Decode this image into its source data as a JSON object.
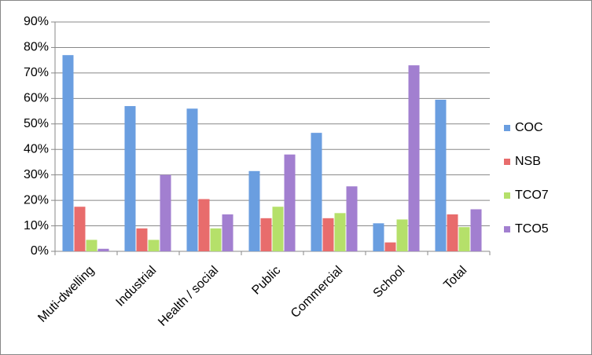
{
  "chart_data": {
    "type": "bar",
    "categories": [
      "Muti-dwelling",
      "Industrial",
      "Health / social",
      "Public",
      "Commercial",
      "School",
      "Total"
    ],
    "series": [
      {
        "name": "COC",
        "color": "#6a9ee0",
        "values": [
          77,
          57,
          56,
          31.5,
          46.5,
          11,
          59.5
        ]
      },
      {
        "name": "NSB",
        "color": "#e86c6c",
        "values": [
          17.5,
          9,
          20.5,
          13,
          13,
          3.5,
          14.5
        ]
      },
      {
        "name": "TCO7",
        "color": "#b5e06a",
        "values": [
          4.5,
          4.5,
          9,
          17.5,
          15,
          12.5,
          9.5
        ]
      },
      {
        "name": "TCO5",
        "color": "#a27fd0",
        "values": [
          1,
          30,
          14.5,
          38,
          25.5,
          73,
          16.5
        ]
      }
    ],
    "ylim": [
      0,
      90
    ],
    "yticks": [
      {
        "value": 0,
        "label": "0%"
      },
      {
        "value": 10,
        "label": "10%"
      },
      {
        "value": 20,
        "label": "20%"
      },
      {
        "value": 30,
        "label": "30%"
      },
      {
        "value": 40,
        "label": "40%"
      },
      {
        "value": 50,
        "label": "50%"
      },
      {
        "value": 60,
        "label": "60%"
      },
      {
        "value": 70,
        "label": "70%"
      },
      {
        "value": 80,
        "label": "80%"
      },
      {
        "value": 90,
        "label": "90%"
      }
    ],
    "grid": true,
    "legend": "right"
  }
}
